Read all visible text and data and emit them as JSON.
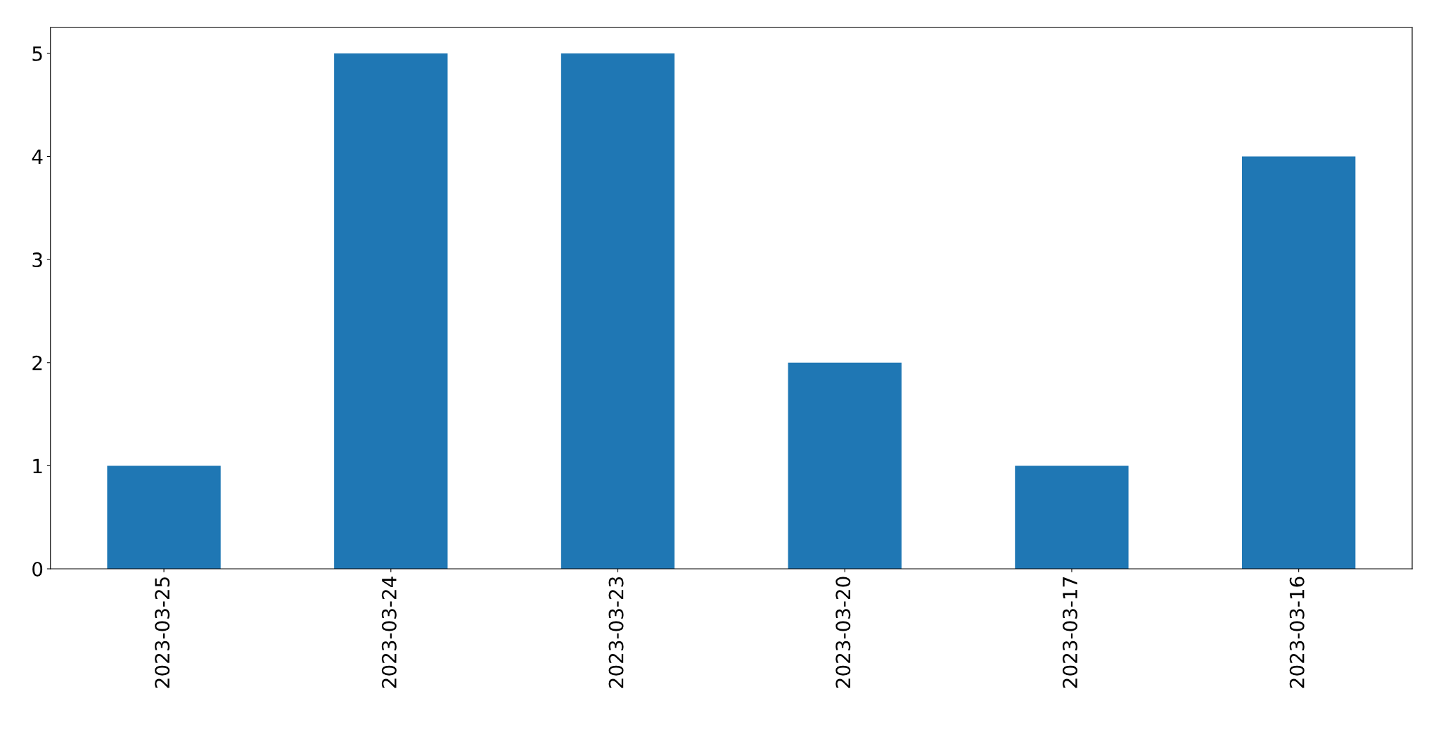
{
  "chart_data": {
    "type": "bar",
    "categories": [
      "2023-03-25",
      "2023-03-24",
      "2023-03-23",
      "2023-03-20",
      "2023-03-17",
      "2023-03-16"
    ],
    "values": [
      1,
      5,
      5,
      2,
      1,
      4
    ],
    "color": "#1f77b4",
    "ylim": [
      0,
      5.25
    ],
    "yticks": [
      0,
      1,
      2,
      3,
      4,
      5
    ],
    "grid": false,
    "legend": false
  }
}
